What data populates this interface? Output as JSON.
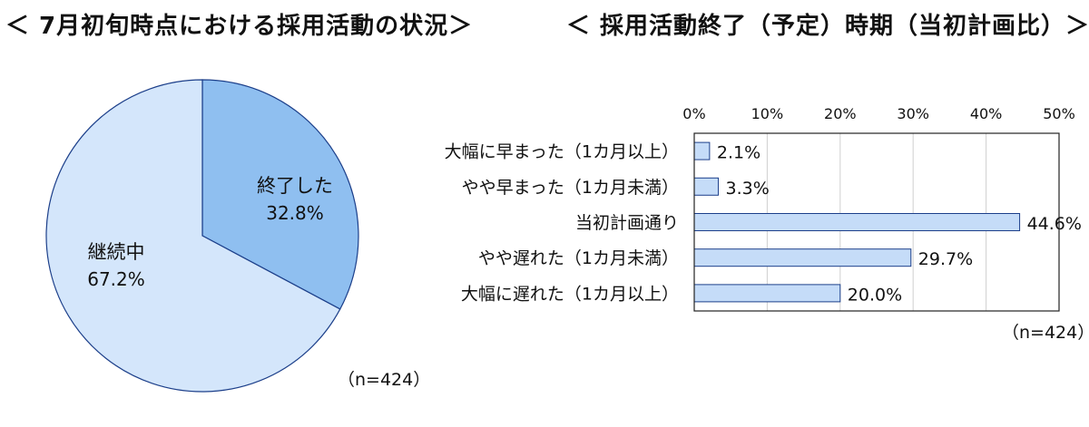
{
  "pie": {
    "title": "＜ 7月初旬時点における採用活動の状況＞",
    "note": "（n=424）",
    "chart_data": {
      "type": "pie",
      "slices": [
        {
          "label": "終了した",
          "value": 32.8,
          "value_label": "32.8%",
          "color": "#8fbff0"
        },
        {
          "label": "継続中",
          "value": 67.2,
          "value_label": "67.2%",
          "color": "#d4e6fb"
        }
      ]
    }
  },
  "bar": {
    "title": "＜ 採用活動終了（予定）時期（当初計画比）＞",
    "note": "（n=424）",
    "chart_data": {
      "type": "bar",
      "orientation": "horizontal",
      "categories": [
        "大幅に早まった（1カ月以上）",
        "やや早まった（1カ月未満）",
        "当初計画通り",
        "やや遅れた（1カ月未満）",
        "大幅に遅れた（1カ月以上）"
      ],
      "values": [
        2.1,
        3.3,
        44.6,
        29.7,
        20.0
      ],
      "value_labels": [
        "2.1%",
        "3.3%",
        "44.6%",
        "29.7%",
        "20.0%"
      ],
      "xlim": [
        0,
        50
      ],
      "ticks": [
        "0%",
        "10%",
        "20%",
        "30%",
        "40%",
        "50%"
      ],
      "grid": true,
      "bar_color": "#c5dcf8",
      "bar_edge": "#1c3f8a"
    }
  }
}
